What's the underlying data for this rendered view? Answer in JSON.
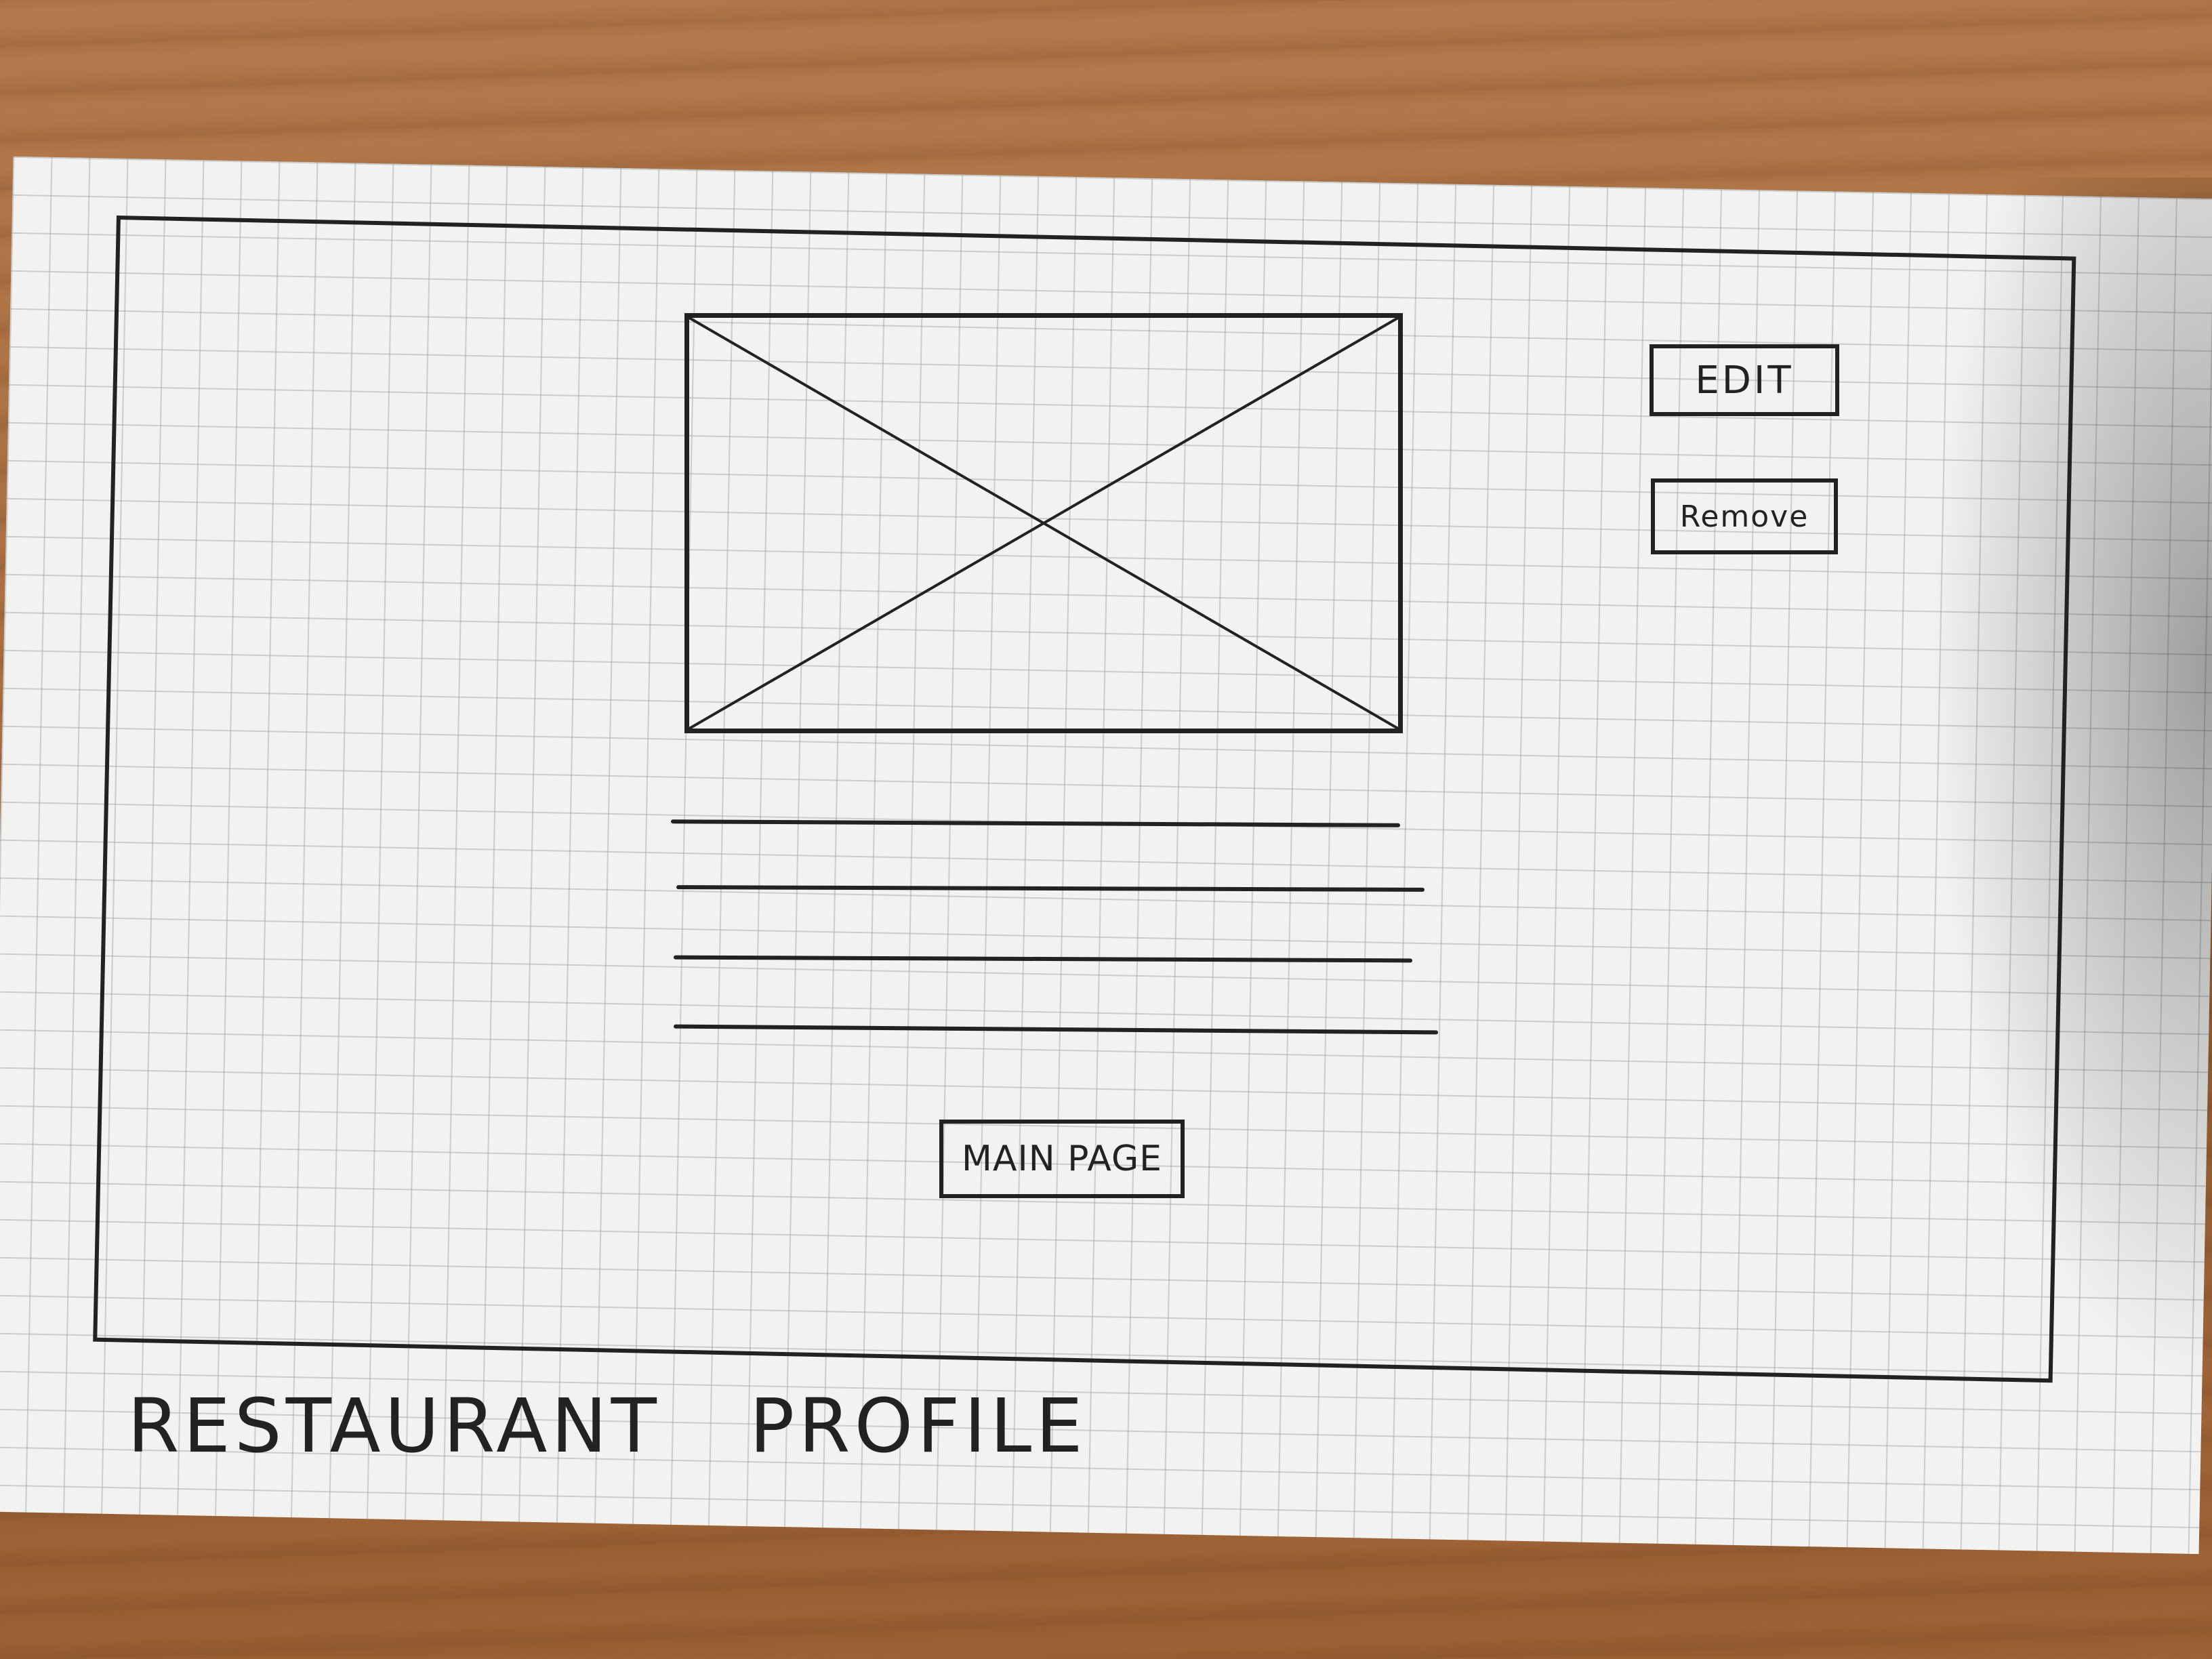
{
  "wireframe": {
    "buttons": {
      "edit_label": "EDIT",
      "remove_label": "Remove",
      "main_page_label": "MAIN PAGE"
    },
    "page_label": "RESTAURANT PROFILE",
    "icons": {
      "image_placeholder": "image-placeholder-icon"
    },
    "colors": {
      "ink": "#222222",
      "paper": "#f2f2f0",
      "grid": "#96a0aa",
      "desk": "#a86b3d"
    }
  }
}
